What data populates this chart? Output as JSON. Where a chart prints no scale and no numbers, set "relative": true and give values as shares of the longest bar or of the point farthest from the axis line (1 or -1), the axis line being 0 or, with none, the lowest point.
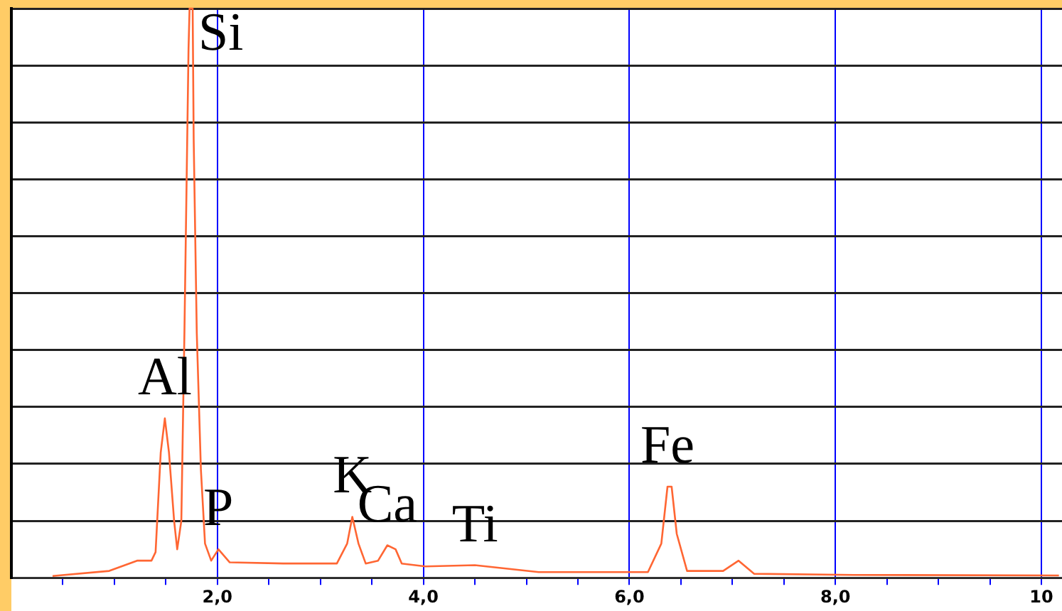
{
  "chart_data": {
    "type": "line",
    "relative": true,
    "color": "#ff6633",
    "x": [
      0.4,
      0.95,
      1.22,
      1.36,
      1.4,
      1.45,
      1.49,
      1.53,
      1.58,
      1.61,
      1.65,
      1.68,
      1.72,
      1.73,
      1.76,
      1.77,
      1.8,
      1.84,
      1.88,
      1.94,
      2.01,
      2.12,
      2.64,
      3.16,
      3.26,
      3.31,
      3.37,
      3.44,
      3.56,
      3.65,
      3.73,
      3.79,
      4.02,
      4.5,
      5.12,
      6.18,
      6.31,
      6.37,
      6.41,
      6.46,
      6.56,
      6.91,
      7.06,
      7.21,
      8.18,
      10.17
    ],
    "values": [
      0.003,
      0.012,
      0.03,
      0.03,
      0.045,
      0.22,
      0.28,
      0.22,
      0.1,
      0.05,
      0.1,
      0.43,
      0.93,
      1.0,
      1.0,
      0.77,
      0.43,
      0.19,
      0.06,
      0.03,
      0.05,
      0.027,
      0.025,
      0.025,
      0.06,
      0.107,
      0.06,
      0.025,
      0.03,
      0.057,
      0.05,
      0.025,
      0.02,
      0.022,
      0.01,
      0.01,
      0.06,
      0.16,
      0.16,
      0.077,
      0.012,
      0.012,
      0.03,
      0.007,
      0.005,
      0.004
    ],
    "xlim": [
      0,
      10.2
    ],
    "xticks": [
      {
        "value": 0.5,
        "label": null
      },
      {
        "value": 1,
        "label": null
      },
      {
        "value": 1.5,
        "label": null
      },
      {
        "value": 2,
        "label": "2,0"
      },
      {
        "value": 2.5,
        "label": null
      },
      {
        "value": 3,
        "label": null
      },
      {
        "value": 3.5,
        "label": null
      },
      {
        "value": 4,
        "label": "4,0"
      },
      {
        "value": 4.5,
        "label": null
      },
      {
        "value": 5,
        "label": null
      },
      {
        "value": 5.5,
        "label": null
      },
      {
        "value": 6,
        "label": "6,0"
      },
      {
        "value": 6.5,
        "label": null
      },
      {
        "value": 7,
        "label": null
      },
      {
        "value": 7.5,
        "label": null
      },
      {
        "value": 8,
        "label": "8,0"
      },
      {
        "value": 8.5,
        "label": null
      },
      {
        "value": 9,
        "label": null
      },
      {
        "value": 9.5,
        "label": null
      },
      {
        "value": 10,
        "label": "10"
      }
    ],
    "grid": true,
    "marker": "none",
    "annotations": [
      {
        "text": "Si",
        "x": 1.76,
        "y": 1.0
      },
      {
        "text": "Al",
        "x": 1.49,
        "y": 0.28
      },
      {
        "text": "P",
        "x": 2.01,
        "y": 0.05
      },
      {
        "text": "K",
        "x": 3.31,
        "y": 0.107
      },
      {
        "text": "Ca",
        "x": 3.65,
        "y": 0.057
      },
      {
        "text": "Ti",
        "x": 4.5,
        "y": 0.022
      },
      {
        "text": "Fe",
        "x": 6.37,
        "y": 0.16
      }
    ]
  }
}
